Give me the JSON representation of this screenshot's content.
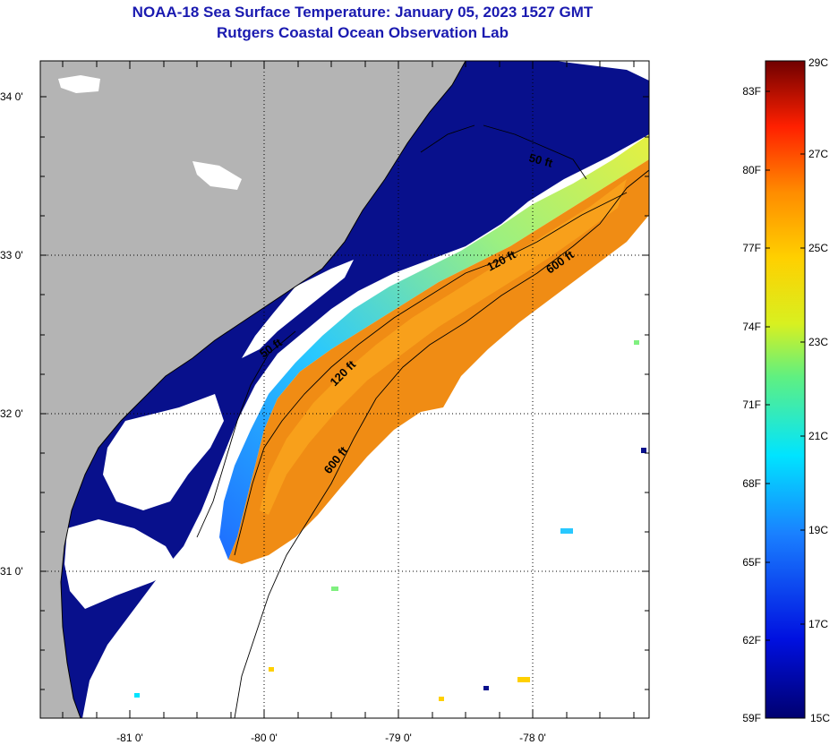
{
  "title_line1": "NOAA-18 Sea Surface Temperature:  January 05, 2023 1527 GMT",
  "title_line2": "Rutgers Coastal Ocean Observation Lab",
  "lat_labels": [
    "34 0'",
    "33 0'",
    "32 0'",
    "31 0'"
  ],
  "lon_labels": [
    "-81 0'",
    "-80 0'",
    "-79 0'",
    "-78 0'"
  ],
  "contours": [
    "50 ft",
    "120 ft",
    "600 ft",
    "50 ft",
    "120 ft",
    "600 ft"
  ],
  "colorbar": {
    "f_labels": [
      "83F",
      "80F",
      "77F",
      "74F",
      "71F",
      "68F",
      "65F",
      "62F",
      "59F"
    ],
    "c_labels": [
      "29C",
      "27C",
      "25C",
      "23C",
      "21C",
      "19C",
      "17C",
      "15C"
    ]
  },
  "colors": {
    "land": "#b4b4b4",
    "cloud": "#ffffff",
    "title": "#1a1ab0",
    "cold": "#08108c",
    "warm": "#f08c14"
  }
}
